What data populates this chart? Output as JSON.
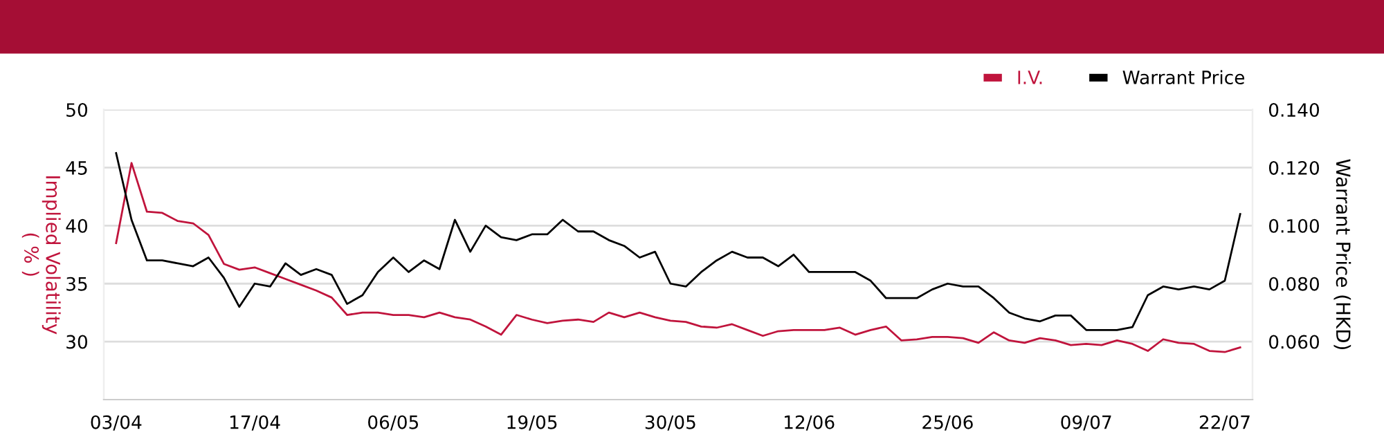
{
  "chart_data": {
    "type": "line",
    "categories": [
      "03/04",
      null,
      null,
      null,
      null,
      null,
      null,
      null,
      null,
      "17/04",
      null,
      null,
      null,
      null,
      null,
      null,
      null,
      null,
      "06/05",
      null,
      null,
      null,
      null,
      null,
      null,
      null,
      null,
      "19/05",
      null,
      null,
      null,
      null,
      null,
      null,
      null,
      null,
      "30/05",
      null,
      null,
      null,
      null,
      null,
      null,
      null,
      null,
      "12/06",
      null,
      null,
      null,
      null,
      null,
      null,
      null,
      null,
      "25/06",
      null,
      null,
      null,
      null,
      null,
      null,
      null,
      null,
      "09/07",
      null,
      null,
      null,
      null,
      null,
      null,
      null,
      null,
      "22/07",
      null
    ],
    "series": [
      {
        "name": "I.V.",
        "color": "#c0143c",
        "values": [
          38.5,
          45.4,
          41.2,
          41.1,
          40.4,
          40.2,
          39.2,
          36.7,
          36.2,
          36.4,
          35.9,
          35.4,
          34.9,
          34.4,
          33.8,
          32.3,
          32.5,
          32.5,
          32.3,
          32.3,
          32.1,
          32.5,
          32.1,
          31.9,
          31.3,
          30.6,
          32.3,
          31.9,
          31.6,
          31.8,
          31.9,
          31.7,
          32.5,
          32.1,
          32.5,
          32.1,
          31.8,
          31.7,
          31.3,
          31.2,
          31.5,
          31.0,
          30.5,
          30.9,
          31.0,
          31.0,
          31.0,
          31.2,
          30.6,
          31.0,
          31.3,
          30.1,
          30.2,
          30.4,
          30.4,
          30.3,
          29.9,
          30.8,
          30.1,
          29.9,
          30.3,
          30.1,
          29.7,
          29.8,
          29.7,
          30.1,
          29.8,
          29.2,
          30.2,
          29.9,
          29.8,
          29.2,
          29.1,
          29.5
        ]
      },
      {
        "name": "Warrant Price",
        "color": "#000000",
        "axis": "y2",
        "values": [
          0.125,
          0.102,
          0.088,
          0.088,
          0.087,
          0.086,
          0.089,
          0.082,
          0.072,
          0.08,
          0.079,
          0.087,
          0.083,
          0.085,
          0.083,
          0.073,
          0.076,
          0.084,
          0.089,
          0.084,
          0.088,
          0.085,
          0.102,
          0.091,
          0.1,
          0.096,
          0.095,
          0.097,
          0.097,
          0.102,
          0.098,
          0.098,
          0.095,
          0.093,
          0.089,
          0.091,
          0.08,
          0.079,
          0.084,
          0.088,
          0.091,
          0.089,
          0.089,
          0.086,
          0.09,
          0.084,
          0.084,
          0.084,
          0.084,
          0.081,
          0.075,
          0.075,
          0.075,
          0.078,
          0.08,
          0.079,
          0.079,
          0.075,
          0.07,
          0.068,
          0.067,
          0.069,
          0.069,
          0.064,
          0.064,
          0.064,
          0.065,
          0.076,
          0.079,
          0.078,
          0.079,
          0.078,
          0.081,
          0.104
        ]
      }
    ],
    "ylabel": "Implied Volatility\n( % )",
    "y2label": "Warrant Price (HKD)",
    "ylim": [
      25,
      50
    ],
    "yticks": [
      30,
      35,
      40,
      45,
      50
    ],
    "y2lim": [
      0.04,
      0.14
    ],
    "y2ticks": [
      {
        "value": 0.06,
        "label": "0.060"
      },
      {
        "value": 0.08,
        "label": "0.080"
      },
      {
        "value": 0.1,
        "label": "0.100"
      },
      {
        "value": 0.12,
        "label": "0.120"
      },
      {
        "value": 0.14,
        "label": "0.140"
      }
    ],
    "grid": "y",
    "legend": "top right",
    "marker": "none",
    "line_style": "solid"
  }
}
